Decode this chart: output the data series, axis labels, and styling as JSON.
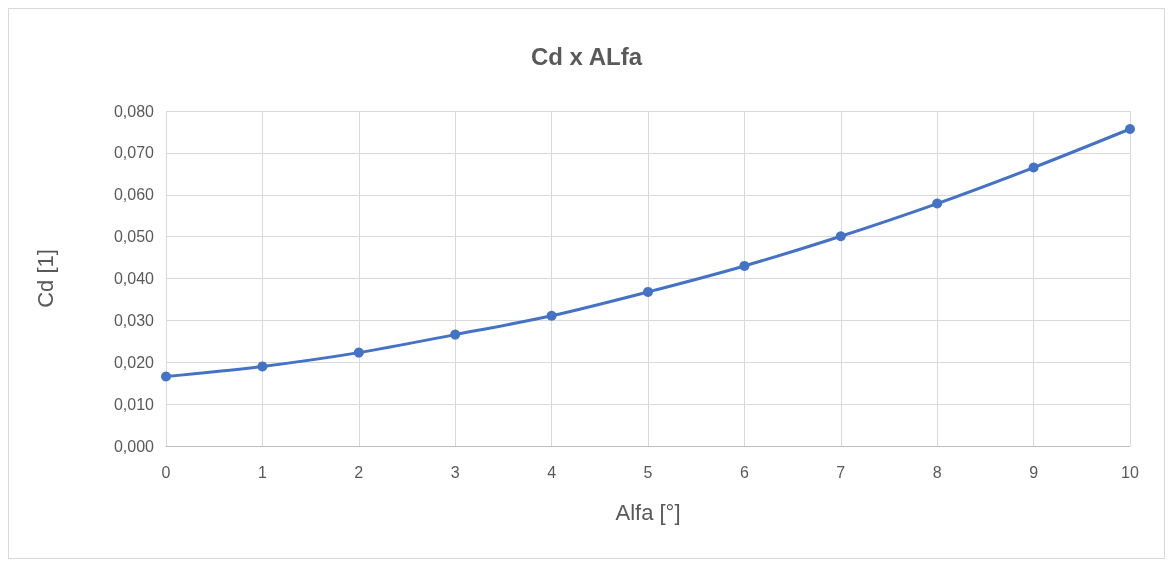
{
  "chart_data": {
    "type": "line",
    "title": "Cd x ALfa",
    "xlabel": "Alfa [°]",
    "ylabel": "Cd [1]",
    "x": [
      0,
      1,
      2,
      3,
      4,
      5,
      6,
      7,
      8,
      9,
      10
    ],
    "series": [
      {
        "color": "#4472c4",
        "values": [
          0.0166,
          0.019,
          0.0223,
          0.0266,
          0.0311,
          0.0368,
          0.043,
          0.0501,
          0.0579,
          0.0665,
          0.0757
        ]
      }
    ],
    "xlim": [
      0,
      10
    ],
    "xticks": [
      0,
      1,
      2,
      3,
      4,
      5,
      6,
      7,
      8,
      9,
      10
    ],
    "ylim": [
      0,
      0.08
    ],
    "yticks": [
      {
        "value": 0,
        "label": "0,000"
      },
      {
        "value": 0.01,
        "label": "0,010"
      },
      {
        "value": 0.02,
        "label": "0,020"
      },
      {
        "value": 0.03,
        "label": "0,030"
      },
      {
        "value": 0.04,
        "label": "0,040"
      },
      {
        "value": 0.05,
        "label": "0,050"
      },
      {
        "value": 0.06,
        "label": "0,060"
      },
      {
        "value": 0.07,
        "label": "0,070"
      },
      {
        "value": 0.08,
        "label": "0,080"
      }
    ],
    "grid": true,
    "marker": "circle",
    "line_style": "solid"
  }
}
